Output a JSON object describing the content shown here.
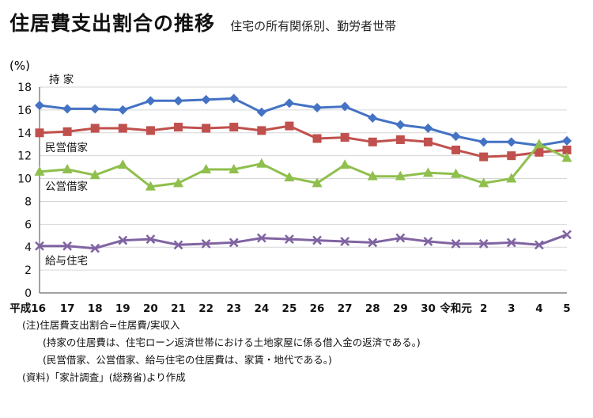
{
  "header": {
    "title": "住居費支出割合の推移",
    "subtitle": "住宅の所有関係別、勤労者世帯"
  },
  "chart_data": {
    "type": "line",
    "ylabel": "(%)",
    "ylim": [
      0,
      18
    ],
    "yticks": [
      0,
      2,
      4,
      6,
      8,
      10,
      12,
      14,
      16,
      18
    ],
    "categories": [
      "平成16",
      "17",
      "18",
      "19",
      "20",
      "21",
      "22",
      "23",
      "24",
      "25",
      "26",
      "27",
      "28",
      "29",
      "30",
      "令和元",
      "2",
      "3",
      "4",
      "5"
    ],
    "grid": true,
    "series": [
      {
        "name": "持 家",
        "color": "#4472c4",
        "marker": "diamond",
        "values": [
          16.4,
          16.1,
          16.1,
          16.0,
          16.8,
          16.8,
          16.9,
          17.0,
          15.8,
          16.6,
          16.2,
          16.3,
          15.3,
          14.7,
          14.4,
          13.7,
          13.2,
          13.2,
          12.9,
          13.3
        ]
      },
      {
        "name": "民営借家",
        "color": "#c0504d",
        "marker": "square",
        "values": [
          14.0,
          14.1,
          14.4,
          14.4,
          14.2,
          14.5,
          14.4,
          14.5,
          14.2,
          14.6,
          13.5,
          13.6,
          13.2,
          13.4,
          13.2,
          12.5,
          11.9,
          12.0,
          12.3,
          12.5
        ]
      },
      {
        "name": "公営借家",
        "color": "#8fbf4d",
        "marker": "triangle",
        "values": [
          10.6,
          10.8,
          10.3,
          11.2,
          9.3,
          9.6,
          10.8,
          10.8,
          11.3,
          10.1,
          9.6,
          11.2,
          10.2,
          10.2,
          10.5,
          10.4,
          9.6,
          10.0,
          13.0,
          11.8
        ]
      },
      {
        "name": "給与住宅",
        "color": "#8064a2",
        "marker": "x",
        "values": [
          4.1,
          4.1,
          3.9,
          4.6,
          4.7,
          4.2,
          4.3,
          4.4,
          4.8,
          4.7,
          4.6,
          4.5,
          4.4,
          4.8,
          4.5,
          4.3,
          4.3,
          4.4,
          4.2,
          5.1
        ]
      }
    ]
  },
  "notes": {
    "n1": "(注)住居費支出割合=住居費/実収入",
    "n2": "(持家の住居費は、住宅ローン返済世帯における土地家屋に係る借入金の返済である。)",
    "n3": "(民営借家、公営借家、給与住宅の住居費は、家賃・地代である。)",
    "n4": "(資料)「家計調査」(総務省)より作成"
  }
}
